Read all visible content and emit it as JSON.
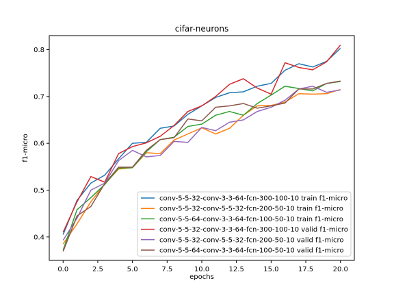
{
  "chart_data": {
    "type": "line",
    "title": "cifar-neurons",
    "xlabel": "epochs",
    "ylabel": "f1-micro",
    "xlim": [
      -1,
      21
    ],
    "ylim": [
      0.35,
      0.83
    ],
    "xticks": [
      0.0,
      2.5,
      5.0,
      7.5,
      10.0,
      12.5,
      15.0,
      17.5,
      20.0
    ],
    "xtick_labels": [
      "0.0",
      "2.5",
      "5.0",
      "7.5",
      "10.0",
      "12.5",
      "15.0",
      "17.5",
      "20.0"
    ],
    "yticks": [
      0.4,
      0.5,
      0.6,
      0.7,
      0.8
    ],
    "ytick_labels": [
      "0.4",
      "0.5",
      "0.6",
      "0.7",
      "0.8"
    ],
    "legend_position": "lower-right",
    "grid": false,
    "x": [
      0,
      1,
      2,
      3,
      4,
      5,
      6,
      7,
      8,
      9,
      10,
      11,
      12,
      13,
      14,
      15,
      16,
      17,
      18,
      19,
      20
    ],
    "series": [
      {
        "name": "conv-5-5-32-conv-3-3-64-fcn-300-100-10 train f1-micro",
        "color": "#1f77b4",
        "values": [
          0.405,
          0.478,
          0.515,
          0.532,
          0.567,
          0.6,
          0.602,
          0.632,
          0.637,
          0.662,
          0.68,
          0.698,
          0.708,
          0.71,
          0.722,
          0.728,
          0.756,
          0.77,
          0.763,
          0.775,
          0.803
        ]
      },
      {
        "name": "conv-5-5-32-conv-5-5-32-fcn-200-50-10 train f1-micro",
        "color": "#ff7f0e",
        "values": [
          0.385,
          0.428,
          0.475,
          0.513,
          0.545,
          0.548,
          0.58,
          0.578,
          0.607,
          0.62,
          0.633,
          0.62,
          0.632,
          0.66,
          0.68,
          0.681,
          0.688,
          0.706,
          0.705,
          0.706,
          0.715
        ]
      },
      {
        "name": "conv-5-5-64-conv-3-3-64-fcn-100-50-10 train f1-micro",
        "color": "#2ca02c",
        "values": [
          0.372,
          0.458,
          0.484,
          0.512,
          0.547,
          0.548,
          0.582,
          0.608,
          0.613,
          0.636,
          0.641,
          0.66,
          0.668,
          0.66,
          0.685,
          0.703,
          0.722,
          0.717,
          0.712,
          0.728,
          0.732
        ]
      },
      {
        "name": "conv-5-5-32-conv-3-3-64-fcn-300-100-10 valid f1-micro",
        "color": "#d62728",
        "values": [
          0.41,
          0.475,
          0.529,
          0.517,
          0.578,
          0.593,
          0.601,
          0.615,
          0.638,
          0.668,
          0.68,
          0.7,
          0.726,
          0.738,
          0.718,
          0.705,
          0.772,
          0.762,
          0.757,
          0.774,
          0.81
        ]
      },
      {
        "name": "conv-5-5-32-conv-5-5-32-fcn-200-50-10 valid f1-micro",
        "color": "#9467bd",
        "values": [
          0.393,
          0.44,
          0.5,
          0.515,
          0.563,
          0.585,
          0.571,
          0.574,
          0.604,
          0.602,
          0.634,
          0.627,
          0.645,
          0.65,
          0.668,
          0.677,
          0.692,
          0.716,
          0.722,
          0.709,
          0.714
        ]
      },
      {
        "name": "conv-5-5-64-conv-3-3-64-fcn-100-50-10 valid f1-micro",
        "color": "#8c564b",
        "values": [
          0.369,
          0.445,
          0.465,
          0.514,
          0.549,
          0.549,
          0.585,
          0.608,
          0.612,
          0.652,
          0.648,
          0.677,
          0.68,
          0.685,
          0.675,
          0.68,
          0.686,
          0.716,
          0.716,
          0.728,
          0.733
        ]
      }
    ]
  }
}
